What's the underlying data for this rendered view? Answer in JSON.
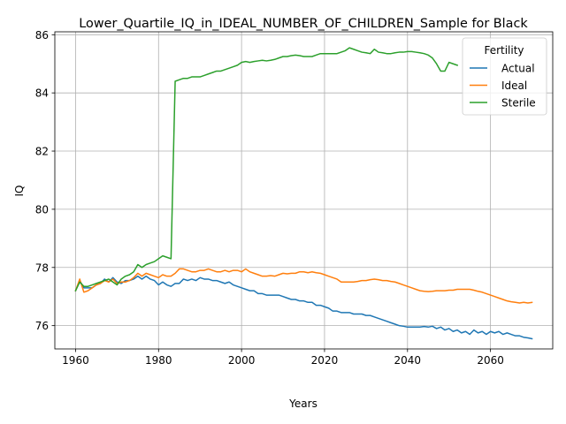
{
  "chart_data": {
    "type": "line",
    "title": "Lower_Quartile_IQ_in_IDEAL_NUMBER_OF_CHILDREN_Sample for Black",
    "xlabel": "Years",
    "ylabel": "IQ",
    "xlim": [
      1955,
      2075
    ],
    "ylim": [
      75.2,
      86.1
    ],
    "xticks": [
      1960,
      1980,
      2000,
      2020,
      2040,
      2060
    ],
    "yticks": [
      76,
      78,
      80,
      82,
      84,
      86
    ],
    "grid": true,
    "legend": {
      "title": "Fertility",
      "placement": "top-right"
    },
    "series": [
      {
        "name": "Actual",
        "color": "#1f77b4",
        "x": [
          1960,
          1961,
          1962,
          1963,
          1964,
          1965,
          1966,
          1967,
          1968,
          1969,
          1970,
          1971,
          1972,
          1973,
          1974,
          1975,
          1976,
          1977,
          1978,
          1979,
          1980,
          1981,
          1982,
          1983,
          1984,
          1985,
          1986,
          1987,
          1988,
          1989,
          1990,
          1991,
          1992,
          1993,
          1994,
          1995,
          1996,
          1997,
          1998,
          1999,
          2000,
          2001,
          2002,
          2003,
          2004,
          2005,
          2006,
          2007,
          2008,
          2009,
          2010,
          2011,
          2012,
          2013,
          2014,
          2015,
          2016,
          2017,
          2018,
          2019,
          2020,
          2021,
          2022,
          2023,
          2024,
          2025,
          2026,
          2027,
          2028,
          2029,
          2030,
          2031,
          2032,
          2033,
          2034,
          2035,
          2036,
          2037,
          2038,
          2039,
          2040,
          2041,
          2042,
          2043,
          2044,
          2045,
          2046,
          2047,
          2048,
          2049,
          2050,
          2051,
          2052,
          2053,
          2054,
          2055,
          2056,
          2057,
          2058,
          2059,
          2060,
          2061,
          2062,
          2063,
          2064,
          2065,
          2066,
          2067,
          2068,
          2069,
          2070
        ],
        "y": [
          77.2,
          77.55,
          77.3,
          77.3,
          77.3,
          77.4,
          77.45,
          77.6,
          77.5,
          77.65,
          77.5,
          77.45,
          77.55,
          77.55,
          77.6,
          77.7,
          77.6,
          77.7,
          77.6,
          77.55,
          77.4,
          77.5,
          77.4,
          77.35,
          77.45,
          77.45,
          77.6,
          77.55,
          77.6,
          77.55,
          77.65,
          77.6,
          77.6,
          77.55,
          77.55,
          77.5,
          77.45,
          77.5,
          77.4,
          77.35,
          77.3,
          77.25,
          77.2,
          77.2,
          77.1,
          77.1,
          77.05,
          77.05,
          77.05,
          77.05,
          77.0,
          76.95,
          76.9,
          76.9,
          76.85,
          76.85,
          76.8,
          76.8,
          76.7,
          76.7,
          76.65,
          76.6,
          76.5,
          76.5,
          76.45,
          76.45,
          76.45,
          76.4,
          76.4,
          76.4,
          76.35,
          76.35,
          76.3,
          76.25,
          76.2,
          76.15,
          76.1,
          76.05,
          76.0,
          75.98,
          75.95,
          75.95,
          75.95,
          75.95,
          75.97,
          75.95,
          75.98,
          75.9,
          75.95,
          75.85,
          75.9,
          75.8,
          75.85,
          75.75,
          75.8,
          75.7,
          75.85,
          75.75,
          75.8,
          75.7,
          75.8,
          75.75,
          75.8,
          75.7,
          75.75,
          75.7,
          75.65,
          75.65,
          75.6,
          75.58,
          75.55
        ]
      },
      {
        "name": "Ideal",
        "color": "#ff7f0e",
        "x": [
          1960,
          1961,
          1962,
          1963,
          1964,
          1965,
          1966,
          1967,
          1968,
          1969,
          1970,
          1971,
          1972,
          1973,
          1974,
          1975,
          1976,
          1977,
          1978,
          1979,
          1980,
          1981,
          1982,
          1983,
          1984,
          1985,
          1986,
          1987,
          1988,
          1989,
          1990,
          1991,
          1992,
          1993,
          1994,
          1995,
          1996,
          1997,
          1998,
          1999,
          2000,
          2001,
          2002,
          2003,
          2004,
          2005,
          2006,
          2007,
          2008,
          2009,
          2010,
          2011,
          2012,
          2013,
          2014,
          2015,
          2016,
          2017,
          2018,
          2019,
          2020,
          2021,
          2022,
          2023,
          2024,
          2025,
          2026,
          2027,
          2028,
          2029,
          2030,
          2031,
          2032,
          2033,
          2034,
          2035,
          2036,
          2037,
          2038,
          2039,
          2040,
          2041,
          2042,
          2043,
          2044,
          2045,
          2046,
          2047,
          2048,
          2049,
          2050,
          2051,
          2052,
          2053,
          2054,
          2055,
          2056,
          2057,
          2058,
          2059,
          2060,
          2061,
          2062,
          2063,
          2064,
          2065,
          2066,
          2067,
          2068,
          2069,
          2070
        ],
        "y": [
          77.2,
          77.6,
          77.15,
          77.2,
          77.3,
          77.4,
          77.45,
          77.55,
          77.5,
          77.6,
          77.45,
          77.5,
          77.5,
          77.55,
          77.65,
          77.8,
          77.7,
          77.8,
          77.75,
          77.7,
          77.65,
          77.75,
          77.7,
          77.7,
          77.8,
          77.95,
          77.95,
          77.9,
          77.85,
          77.85,
          77.9,
          77.9,
          77.95,
          77.9,
          77.85,
          77.85,
          77.9,
          77.85,
          77.9,
          77.9,
          77.85,
          77.95,
          77.85,
          77.8,
          77.75,
          77.7,
          77.7,
          77.72,
          77.7,
          77.75,
          77.8,
          77.78,
          77.8,
          77.8,
          77.85,
          77.85,
          77.82,
          77.85,
          77.82,
          77.8,
          77.75,
          77.7,
          77.65,
          77.6,
          77.5,
          77.5,
          77.5,
          77.5,
          77.52,
          77.55,
          77.55,
          77.58,
          77.6,
          77.58,
          77.55,
          77.55,
          77.52,
          77.5,
          77.45,
          77.4,
          77.35,
          77.3,
          77.25,
          77.2,
          77.18,
          77.17,
          77.18,
          77.2,
          77.2,
          77.2,
          77.22,
          77.22,
          77.25,
          77.25,
          77.25,
          77.25,
          77.22,
          77.18,
          77.15,
          77.1,
          77.05,
          77.0,
          76.95,
          76.9,
          76.85,
          76.82,
          76.8,
          76.78,
          76.8,
          76.78,
          76.8
        ]
      },
      {
        "name": "Sterile",
        "color": "#2ca02c",
        "x": [
          1960,
          1961,
          1962,
          1963,
          1964,
          1965,
          1966,
          1967,
          1968,
          1969,
          1970,
          1971,
          1972,
          1973,
          1974,
          1975,
          1976,
          1977,
          1978,
          1979,
          1980,
          1981,
          1982,
          1983,
          1984,
          1985,
          1986,
          1987,
          1988,
          1989,
          1990,
          1991,
          1992,
          1993,
          1994,
          1995,
          1996,
          1997,
          1998,
          1999,
          2000,
          2001,
          2002,
          2003,
          2004,
          2005,
          2006,
          2007,
          2008,
          2009,
          2010,
          2011,
          2012,
          2013,
          2014,
          2015,
          2016,
          2017,
          2018,
          2019,
          2020,
          2021,
          2022,
          2023,
          2024,
          2025,
          2026,
          2027,
          2028,
          2029,
          2030,
          2031,
          2032,
          2033,
          2034,
          2035,
          2036,
          2037,
          2038,
          2039,
          2040,
          2041,
          2042,
          2043,
          2044,
          2045,
          2046,
          2047,
          2048,
          2049,
          2050,
          2051,
          2052
        ],
        "y": [
          77.2,
          77.5,
          77.35,
          77.35,
          77.4,
          77.45,
          77.5,
          77.55,
          77.6,
          77.5,
          77.4,
          77.6,
          77.7,
          77.75,
          77.85,
          78.1,
          78.0,
          78.1,
          78.15,
          78.2,
          78.3,
          78.4,
          78.35,
          78.3,
          84.4,
          84.45,
          84.5,
          84.5,
          84.55,
          84.55,
          84.55,
          84.6,
          84.65,
          84.7,
          84.75,
          84.75,
          84.8,
          84.85,
          84.9,
          84.95,
          85.05,
          85.08,
          85.05,
          85.08,
          85.1,
          85.12,
          85.1,
          85.12,
          85.15,
          85.2,
          85.25,
          85.25,
          85.28,
          85.3,
          85.28,
          85.25,
          85.25,
          85.25,
          85.3,
          85.35,
          85.35,
          85.35,
          85.35,
          85.35,
          85.4,
          85.45,
          85.55,
          85.5,
          85.45,
          85.4,
          85.38,
          85.35,
          85.5,
          85.4,
          85.38,
          85.35,
          85.35,
          85.38,
          85.4,
          85.4,
          85.42,
          85.42,
          85.4,
          85.38,
          85.35,
          85.3,
          85.2,
          85.0,
          84.75,
          84.75,
          85.05,
          85.0,
          84.95
        ]
      }
    ]
  }
}
